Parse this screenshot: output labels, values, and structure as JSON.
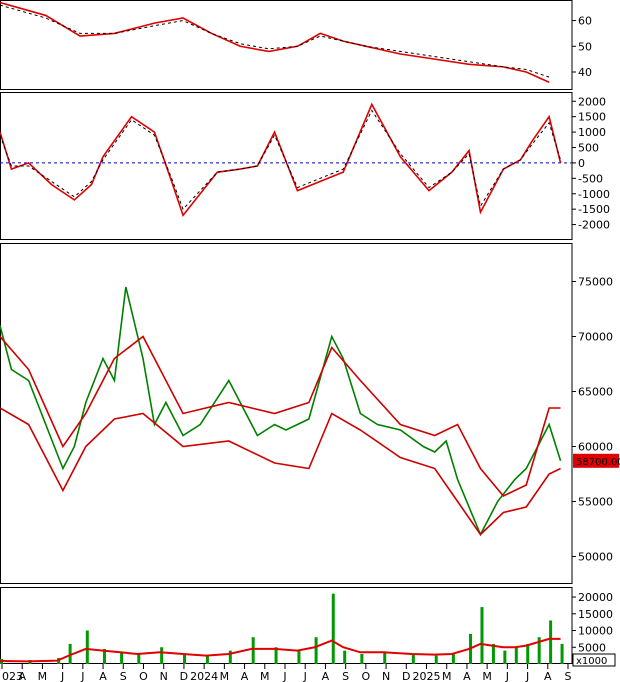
{
  "chart_data": [
    {
      "type": "line",
      "panel": "indicator-1",
      "ylim": [
        33,
        68
      ],
      "yticks": [
        "40",
        "50",
        "60"
      ],
      "series": [
        {
          "color": "#e00000",
          "x": [
            0,
            0.08,
            0.14,
            0.2,
            0.27,
            0.32,
            0.37,
            0.42,
            0.47,
            0.52,
            0.56,
            0.6,
            0.64,
            0.7,
            0.76,
            0.82,
            0.88,
            0.92,
            0.96
          ],
          "values": [
            67,
            62,
            54,
            55,
            59,
            61,
            55,
            50,
            48,
            50,
            55,
            52,
            50,
            47,
            45,
            43,
            42,
            40,
            36
          ]
        },
        {
          "color": "#000000",
          "dashed": true,
          "x": [
            0,
            0.08,
            0.14,
            0.2,
            0.27,
            0.32,
            0.37,
            0.42,
            0.47,
            0.52,
            0.56,
            0.6,
            0.64,
            0.7,
            0.76,
            0.82,
            0.88,
            0.92,
            0.96
          ],
          "values": [
            66,
            61,
            55,
            55,
            58,
            60,
            55,
            51,
            49,
            50,
            54,
            52,
            50,
            48,
            46,
            44,
            42,
            41,
            38
          ]
        }
      ]
    },
    {
      "type": "line",
      "panel": "indicator-2",
      "ylim": [
        -2500,
        2300
      ],
      "yticks": [
        "2000",
        "1500",
        "1000",
        "500",
        "0",
        "-500",
        "-1000",
        "-1500",
        "-2000"
      ],
      "reference": 0,
      "series": [
        {
          "color": "#e00000",
          "x": [
            0,
            0.02,
            0.05,
            0.09,
            0.13,
            0.16,
            0.18,
            0.23,
            0.27,
            0.3,
            0.32,
            0.38,
            0.42,
            0.45,
            0.48,
            0.52,
            0.56,
            0.6,
            0.65,
            0.7,
            0.75,
            0.79,
            0.82,
            0.84,
            0.88,
            0.91,
            0.93,
            0.96,
            0.98
          ],
          "values": [
            1000,
            -200,
            0,
            -700,
            -1200,
            -700,
            200,
            1500,
            1000,
            -600,
            -1700,
            -300,
            -200,
            -100,
            1000,
            -900,
            -600,
            -300,
            1900,
            200,
            -900,
            -300,
            400,
            -1600,
            -200,
            100,
            700,
            1500,
            0
          ]
        },
        {
          "color": "#000000",
          "dashed": true,
          "x": [
            0,
            0.02,
            0.05,
            0.09,
            0.13,
            0.16,
            0.18,
            0.23,
            0.27,
            0.3,
            0.32,
            0.38,
            0.42,
            0.45,
            0.48,
            0.52,
            0.56,
            0.6,
            0.65,
            0.7,
            0.75,
            0.79,
            0.82,
            0.84,
            0.88,
            0.91,
            0.93,
            0.96,
            0.98
          ],
          "values": [
            900,
            -100,
            -100,
            -600,
            -1100,
            -600,
            100,
            1400,
            900,
            -500,
            -1500,
            -300,
            -200,
            -100,
            900,
            -800,
            -500,
            -200,
            1700,
            300,
            -800,
            -300,
            300,
            -1400,
            -200,
            100,
            600,
            1300,
            100
          ]
        }
      ]
    },
    {
      "type": "line",
      "panel": "price",
      "ylim": [
        47500,
        78500
      ],
      "yticks": [
        "75000",
        "70000",
        "65000",
        "60000",
        "55000",
        "50000"
      ],
      "last_value_label": "58700.00",
      "series": [
        {
          "color": "#008000",
          "x": [
            0,
            0.02,
            0.05,
            0.08,
            0.11,
            0.13,
            0.15,
            0.18,
            0.2,
            0.22,
            0.25,
            0.27,
            0.29,
            0.32,
            0.35,
            0.4,
            0.45,
            0.48,
            0.5,
            0.54,
            0.58,
            0.6,
            0.63,
            0.66,
            0.7,
            0.74,
            0.76,
            0.78,
            0.8,
            0.84,
            0.87,
            0.9,
            0.92,
            0.94,
            0.96,
            0.98
          ],
          "values": [
            71000,
            67000,
            66000,
            62000,
            58000,
            60000,
            64000,
            68000,
            66000,
            74500,
            68000,
            62000,
            64000,
            61000,
            62000,
            66000,
            61000,
            62000,
            61500,
            62500,
            70000,
            68000,
            63000,
            62000,
            61500,
            60000,
            59500,
            60500,
            57000,
            52000,
            55000,
            57000,
            58000,
            60000,
            62000,
            58700
          ]
        },
        {
          "color": "#cc0000",
          "x": [
            0,
            0.05,
            0.11,
            0.15,
            0.2,
            0.25,
            0.32,
            0.4,
            0.48,
            0.54,
            0.58,
            0.63,
            0.7,
            0.76,
            0.8,
            0.84,
            0.88,
            0.92,
            0.96,
            0.98
          ],
          "values": [
            70000,
            67000,
            60000,
            63000,
            68000,
            70000,
            63000,
            64000,
            63000,
            64000,
            69000,
            66000,
            62000,
            61000,
            62000,
            58000,
            55500,
            56500,
            63500,
            63500
          ]
        },
        {
          "color": "#cc0000",
          "x": [
            0,
            0.05,
            0.11,
            0.15,
            0.2,
            0.25,
            0.32,
            0.4,
            0.48,
            0.54,
            0.58,
            0.63,
            0.7,
            0.76,
            0.8,
            0.84,
            0.88,
            0.92,
            0.96,
            0.98
          ],
          "values": [
            63500,
            62000,
            56000,
            60000,
            62500,
            63000,
            60000,
            60500,
            58500,
            58000,
            63000,
            61500,
            59000,
            58000,
            55000,
            52000,
            54000,
            54500,
            57500,
            58000
          ]
        }
      ]
    },
    {
      "type": "bar",
      "panel": "volume",
      "unit_label": "x1000",
      "ylim": [
        0,
        23000
      ],
      "yticks": [
        "20000",
        "15000",
        "10000",
        "5000"
      ],
      "x": [
        0,
        0.05,
        0.1,
        0.12,
        0.15,
        0.18,
        0.21,
        0.24,
        0.28,
        0.32,
        0.36,
        0.4,
        0.44,
        0.48,
        0.52,
        0.55,
        0.58,
        0.6,
        0.63,
        0.67,
        0.72,
        0.76,
        0.79,
        0.82,
        0.84,
        0.86,
        0.88,
        0.9,
        0.92,
        0.94,
        0.96,
        0.98
      ],
      "values": [
        1500,
        1200,
        1800,
        6000,
        10000,
        4500,
        3500,
        3000,
        5000,
        3000,
        2500,
        4000,
        8000,
        5000,
        4000,
        8000,
        21000,
        4000,
        3000,
        3500,
        3000,
        2500,
        3000,
        9000,
        17000,
        6000,
        4000,
        5000,
        6000,
        8000,
        13000,
        6000
      ],
      "ma_values": [
        900,
        800,
        1000,
        2500,
        4500,
        4000,
        3500,
        3000,
        3500,
        3000,
        2500,
        3000,
        4500,
        4500,
        4000,
        5000,
        7000,
        5000,
        3500,
        3500,
        3000,
        2800,
        3000,
        4500,
        6000,
        5500,
        5000,
        5000,
        5500,
        6500,
        7500,
        7500
      ]
    }
  ],
  "x_axis": {
    "labels": [
      "023",
      "A",
      "M",
      "J",
      "J",
      "A",
      "S",
      "O",
      "N",
      "D",
      "2024",
      "M",
      "A",
      "M",
      "J",
      "J",
      "A",
      "S",
      "O",
      "N",
      "D",
      "2025",
      "M",
      "A",
      "M",
      "J",
      "J",
      "A",
      "S"
    ]
  }
}
